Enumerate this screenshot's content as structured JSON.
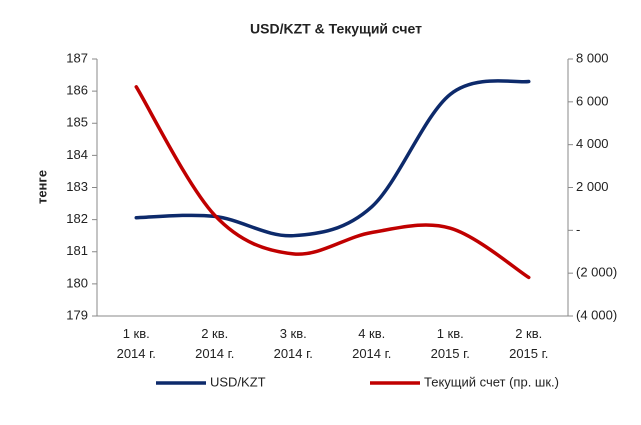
{
  "chart_data": {
    "type": "line",
    "title": "USD/KZT & Текущий счет",
    "ylabel": "тенге",
    "categories": [
      "1 кв. 2014 г.",
      "2 кв. 2014 г.",
      "3 кв. 2014 г.",
      "4 кв. 2014 г.",
      "1 кв. 2015 г.",
      "2 кв. 2015 г."
    ],
    "series": [
      {
        "name": "USD/KZT",
        "color": "#0d2a6b",
        "values": [
          182.06,
          182.1,
          181.5,
          182.4,
          185.9,
          186.3
        ]
      },
      {
        "name": "Текущий счет (пр. шк.)",
        "color": "#c00000",
        "axis": "y2",
        "values": [
          6700,
          700,
          -1100,
          -100,
          100,
          -2200
        ]
      }
    ],
    "ylim": [
      179,
      187
    ],
    "yticks": [
      179,
      180,
      181,
      182,
      183,
      184,
      185,
      186,
      187
    ],
    "y2lim": [
      -4000,
      8000
    ],
    "y2ticks": [
      {
        "value": -4000,
        "label": "(4 000)"
      },
      {
        "value": -2000,
        "label": "(2 000)"
      },
      {
        "value": 0,
        "label": "-"
      },
      {
        "value": 2000,
        "label": "2 000"
      },
      {
        "value": 4000,
        "label": "4 000"
      },
      {
        "value": 6000,
        "label": "6 000"
      },
      {
        "value": 8000,
        "label": "8 000"
      }
    ],
    "smooth": true,
    "legend": "bottom"
  }
}
